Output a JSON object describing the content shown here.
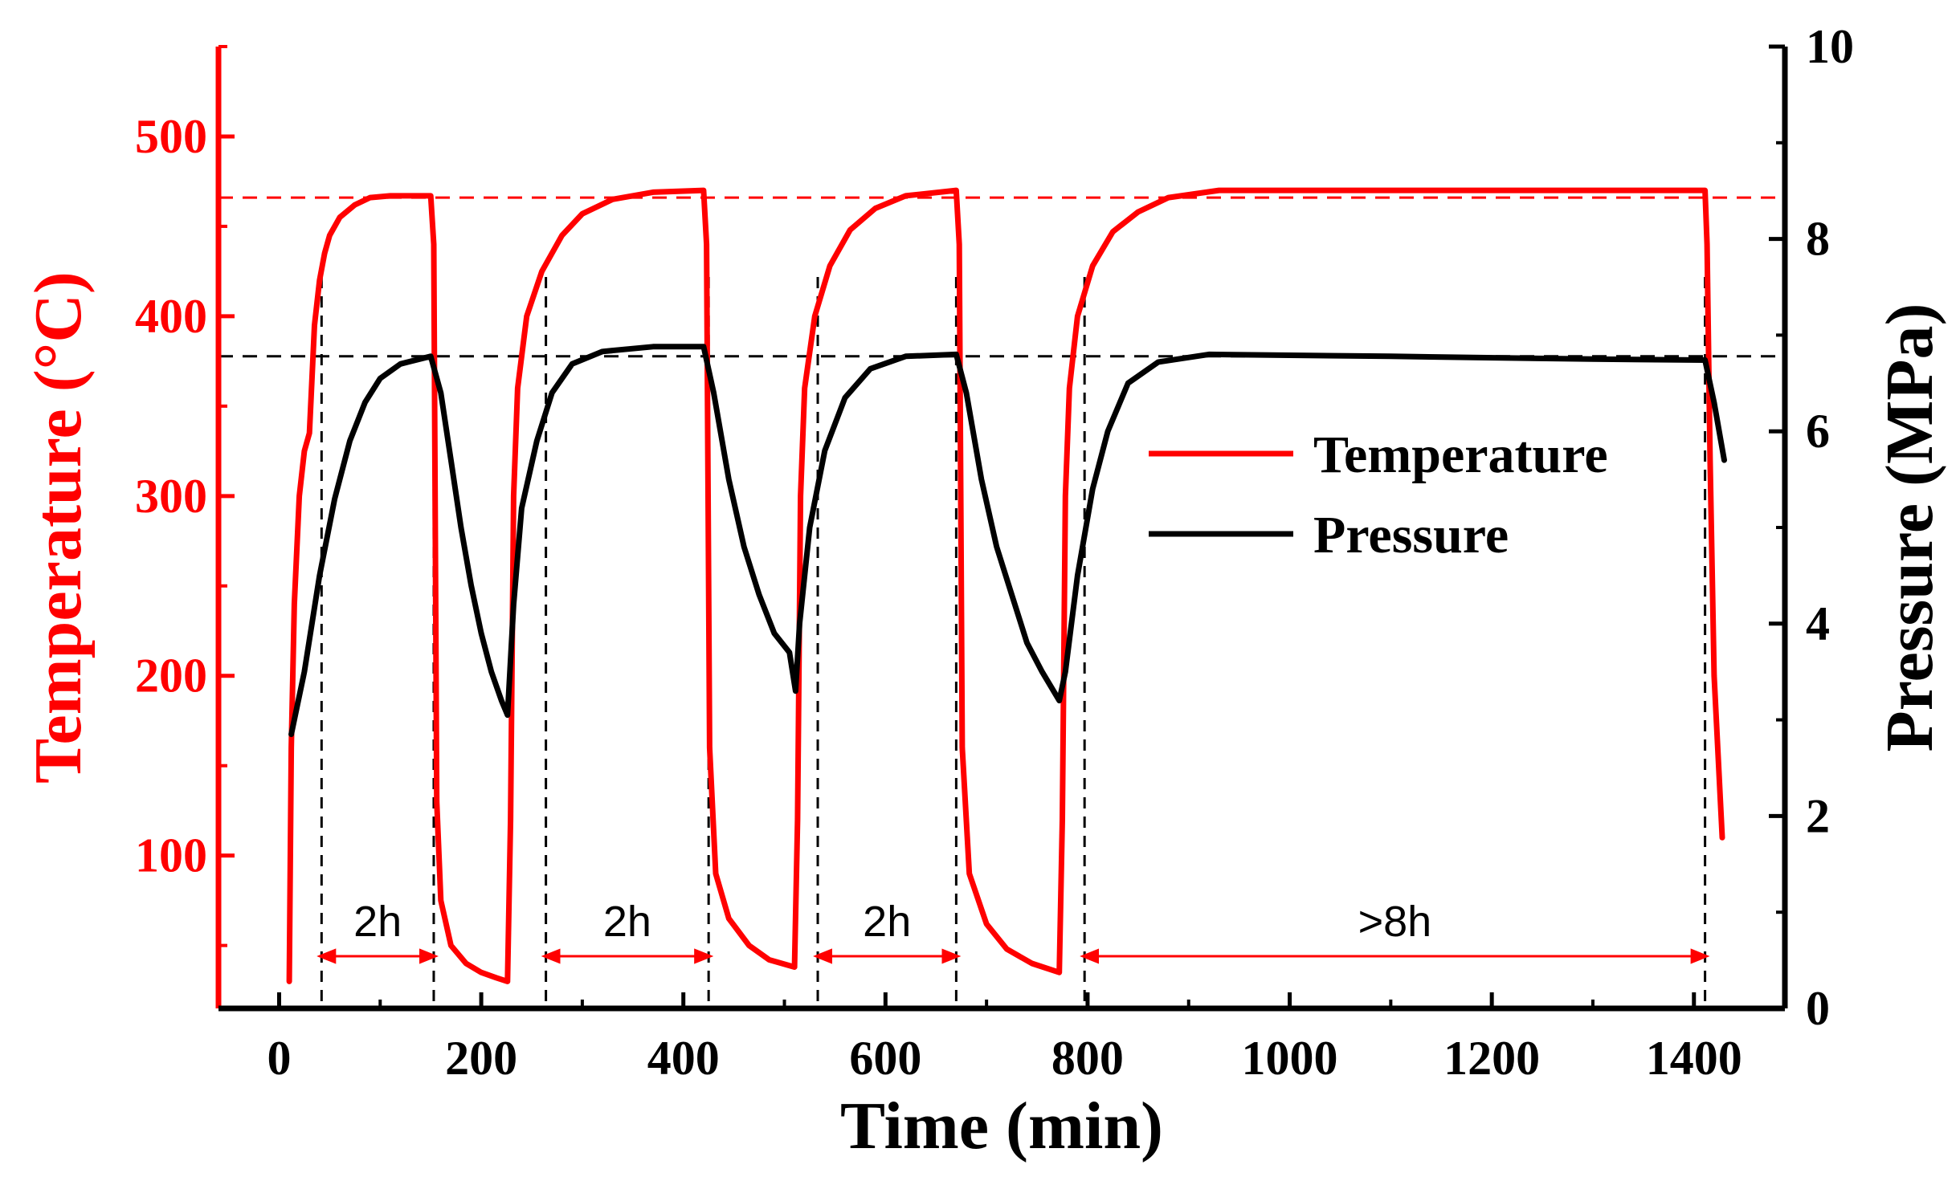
{
  "chart_data": {
    "type": "line",
    "title": "",
    "xlabel": "Time (min)",
    "ylabel_left": "Temperature (°C)",
    "ylabel_right": "Pressure (MPa)",
    "xlim": [
      -60,
      1490
    ],
    "xticks": [
      0,
      200,
      400,
      600,
      800,
      1000,
      1200,
      1400
    ],
    "ylim_left": [
      15,
      550
    ],
    "yticks_left": [
      100,
      200,
      300,
      400,
      500
    ],
    "ylim_right": [
      0,
      10
    ],
    "yticks_right": [
      0,
      2,
      4,
      6,
      8,
      10
    ],
    "colors": {
      "temperature": "#ff0000",
      "pressure": "#000000",
      "axis_left": "#ff0000",
      "axis_right": "#000000"
    },
    "legend": {
      "position": "center-right",
      "entries": [
        "Temperature",
        "Pressure"
      ]
    },
    "series": [
      {
        "name": "Temperature",
        "axis": "left",
        "color": "#ff0000",
        "points": [
          [
            10,
            30
          ],
          [
            12,
            160
          ],
          [
            15,
            240
          ],
          [
            20,
            300
          ],
          [
            25,
            325
          ],
          [
            30,
            335
          ],
          [
            35,
            395
          ],
          [
            40,
            420
          ],
          [
            45,
            435
          ],
          [
            50,
            445
          ],
          [
            60,
            455
          ],
          [
            75,
            462
          ],
          [
            90,
            466
          ],
          [
            110,
            467
          ],
          [
            150,
            467
          ],
          [
            153,
            440
          ],
          [
            156,
            130
          ],
          [
            160,
            75
          ],
          [
            170,
            50
          ],
          [
            185,
            40
          ],
          [
            200,
            35
          ],
          [
            215,
            32
          ],
          [
            226,
            30
          ],
          [
            229,
            120
          ],
          [
            232,
            300
          ],
          [
            236,
            360
          ],
          [
            245,
            400
          ],
          [
            260,
            425
          ],
          [
            280,
            445
          ],
          [
            300,
            457
          ],
          [
            330,
            465
          ],
          [
            370,
            469
          ],
          [
            420,
            470
          ],
          [
            423,
            440
          ],
          [
            426,
            160
          ],
          [
            432,
            90
          ],
          [
            445,
            65
          ],
          [
            465,
            50
          ],
          [
            485,
            42
          ],
          [
            510,
            38
          ],
          [
            513,
            120
          ],
          [
            516,
            300
          ],
          [
            520,
            360
          ],
          [
            530,
            400
          ],
          [
            545,
            428
          ],
          [
            565,
            448
          ],
          [
            590,
            460
          ],
          [
            620,
            467
          ],
          [
            670,
            470
          ],
          [
            673,
            440
          ],
          [
            676,
            160
          ],
          [
            683,
            90
          ],
          [
            700,
            62
          ],
          [
            720,
            48
          ],
          [
            745,
            40
          ],
          [
            772,
            35
          ],
          [
            775,
            120
          ],
          [
            778,
            300
          ],
          [
            782,
            360
          ],
          [
            790,
            400
          ],
          [
            805,
            428
          ],
          [
            825,
            447
          ],
          [
            850,
            458
          ],
          [
            880,
            466
          ],
          [
            930,
            470
          ],
          [
            1100,
            470
          ],
          [
            1300,
            470
          ],
          [
            1411,
            470
          ],
          [
            1413,
            440
          ],
          [
            1416,
            320
          ],
          [
            1420,
            200
          ],
          [
            1428,
            110
          ]
        ]
      },
      {
        "name": "Pressure",
        "axis": "right",
        "color": "#000000",
        "points": [
          [
            12,
            2.85
          ],
          [
            25,
            3.5
          ],
          [
            40,
            4.5
          ],
          [
            55,
            5.3
          ],
          [
            70,
            5.9
          ],
          [
            85,
            6.3
          ],
          [
            100,
            6.55
          ],
          [
            120,
            6.7
          ],
          [
            150,
            6.78
          ],
          [
            160,
            6.4
          ],
          [
            170,
            5.7
          ],
          [
            180,
            5.0
          ],
          [
            190,
            4.4
          ],
          [
            200,
            3.9
          ],
          [
            210,
            3.5
          ],
          [
            220,
            3.2
          ],
          [
            226,
            3.05
          ],
          [
            232,
            4.2
          ],
          [
            240,
            5.2
          ],
          [
            255,
            5.9
          ],
          [
            270,
            6.4
          ],
          [
            290,
            6.7
          ],
          [
            320,
            6.83
          ],
          [
            370,
            6.88
          ],
          [
            420,
            6.88
          ],
          [
            430,
            6.4
          ],
          [
            445,
            5.5
          ],
          [
            460,
            4.8
          ],
          [
            475,
            4.3
          ],
          [
            490,
            3.9
          ],
          [
            505,
            3.7
          ],
          [
            511,
            3.3
          ],
          [
            515,
            4.0
          ],
          [
            525,
            5.0
          ],
          [
            540,
            5.8
          ],
          [
            560,
            6.35
          ],
          [
            585,
            6.65
          ],
          [
            620,
            6.78
          ],
          [
            670,
            6.8
          ],
          [
            680,
            6.4
          ],
          [
            695,
            5.5
          ],
          [
            710,
            4.8
          ],
          [
            725,
            4.3
          ],
          [
            740,
            3.8
          ],
          [
            755,
            3.5
          ],
          [
            772,
            3.2
          ],
          [
            778,
            3.5
          ],
          [
            790,
            4.5
          ],
          [
            805,
            5.4
          ],
          [
            820,
            6.0
          ],
          [
            840,
            6.5
          ],
          [
            870,
            6.72
          ],
          [
            920,
            6.8
          ],
          [
            1100,
            6.78
          ],
          [
            1300,
            6.75
          ],
          [
            1411,
            6.74
          ],
          [
            1420,
            6.3
          ],
          [
            1430,
            5.7
          ]
        ]
      }
    ],
    "reference_lines": [
      {
        "axis": "left",
        "value": 466,
        "color": "#ff0000",
        "style": "dashed"
      },
      {
        "axis": "right",
        "value": 6.78,
        "color": "#000000",
        "style": "dashed"
      }
    ],
    "period_markers": [
      {
        "start": 42,
        "end": 153,
        "label": "2h"
      },
      {
        "start": 264,
        "end": 425,
        "label": "2h"
      },
      {
        "start": 533,
        "end": 670,
        "label": "2h"
      },
      {
        "start": 797,
        "end": 1411,
        "label": ">8h"
      }
    ]
  }
}
